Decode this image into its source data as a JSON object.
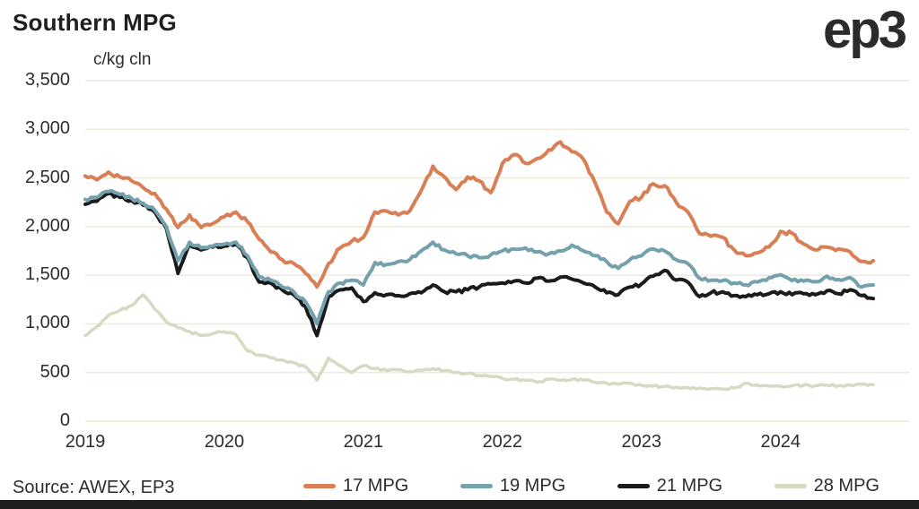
{
  "header": {
    "title": "Southern MPG",
    "unit_label": "c/kg cln",
    "logo": "ep3"
  },
  "footer": {
    "source": "Source: AWEX, EP3"
  },
  "colors": {
    "orange": "#D97F55",
    "teal": "#74A1AB",
    "black": "#1B1B1B",
    "beige": "#D8D9C2",
    "gridline": "#EEEBDD",
    "text": "#2D2D2D",
    "footer_bar": "#1F1F1F"
  },
  "chart_data": {
    "type": "line",
    "title": "Southern MPG",
    "ylabel": "c/kg cln",
    "ylim": [
      0,
      3500
    ],
    "yticks": [
      0,
      500,
      1000,
      1500,
      2000,
      2500,
      3000,
      3500
    ],
    "ytick_labels": [
      "0",
      "500",
      "1,000",
      "1,500",
      "2,000",
      "2,500",
      "3,000",
      "3,500"
    ],
    "x_start": "2019-01",
    "x_end": "2024-09",
    "x_frequency": "monthly",
    "xtick_labels": [
      "2019",
      "2020",
      "2021",
      "2022",
      "2023",
      "2024"
    ],
    "xtick_month_index": [
      0,
      12,
      24,
      36,
      48,
      60
    ],
    "grid": "horizontal-only",
    "legend_position": "bottom",
    "series": [
      {
        "name": "17 MPG",
        "color": "#D97F55",
        "values": [
          2520,
          2480,
          2560,
          2510,
          2470,
          2400,
          2340,
          2180,
          1990,
          2120,
          1990,
          2030,
          2100,
          2150,
          2050,
          1870,
          1740,
          1660,
          1620,
          1520,
          1380,
          1620,
          1780,
          1850,
          1890,
          2150,
          2160,
          2120,
          2160,
          2370,
          2620,
          2510,
          2380,
          2510,
          2470,
          2350,
          2650,
          2740,
          2650,
          2700,
          2790,
          2870,
          2770,
          2690,
          2450,
          2150,
          2030,
          2260,
          2300,
          2440,
          2420,
          2250,
          2150,
          1930,
          1900,
          1890,
          1760,
          1700,
          1730,
          1790,
          1950,
          1930,
          1820,
          1760,
          1790,
          1770,
          1740,
          1640,
          1650
        ]
      },
      {
        "name": "19 MPG",
        "color": "#74A1AB",
        "values": [
          2280,
          2300,
          2360,
          2330,
          2290,
          2240,
          2170,
          2000,
          1650,
          1840,
          1780,
          1800,
          1820,
          1840,
          1700,
          1480,
          1450,
          1380,
          1330,
          1230,
          1000,
          1330,
          1420,
          1450,
          1400,
          1630,
          1610,
          1640,
          1660,
          1750,
          1840,
          1760,
          1720,
          1700,
          1680,
          1710,
          1750,
          1770,
          1780,
          1740,
          1720,
          1750,
          1810,
          1750,
          1700,
          1640,
          1570,
          1660,
          1700,
          1770,
          1750,
          1660,
          1620,
          1470,
          1450,
          1445,
          1420,
          1400,
          1430,
          1475,
          1505,
          1445,
          1440,
          1435,
          1490,
          1455,
          1475,
          1380,
          1400
        ]
      },
      {
        "name": "21 MPG",
        "color": "#1B1B1B",
        "values": [
          2230,
          2260,
          2340,
          2300,
          2270,
          2220,
          2150,
          1980,
          1520,
          1820,
          1760,
          1790,
          1800,
          1820,
          1680,
          1430,
          1420,
          1350,
          1300,
          1180,
          880,
          1280,
          1350,
          1370,
          1230,
          1320,
          1300,
          1290,
          1310,
          1320,
          1400,
          1330,
          1330,
          1350,
          1380,
          1410,
          1420,
          1440,
          1420,
          1470,
          1440,
          1480,
          1460,
          1420,
          1380,
          1320,
          1300,
          1380,
          1410,
          1490,
          1550,
          1450,
          1430,
          1280,
          1320,
          1330,
          1290,
          1280,
          1300,
          1310,
          1330,
          1300,
          1310,
          1300,
          1340,
          1310,
          1350,
          1290,
          1260
        ]
      },
      {
        "name": "28 MPG",
        "color": "#D8D9C2",
        "values": [
          880,
          970,
          1090,
          1140,
          1190,
          1300,
          1150,
          1020,
          960,
          920,
          880,
          900,
          920,
          890,
          720,
          680,
          650,
          630,
          600,
          560,
          420,
          650,
          570,
          500,
          570,
          540,
          520,
          530,
          510,
          520,
          540,
          520,
          500,
          490,
          470,
          460,
          440,
          430,
          420,
          400,
          430,
          420,
          430,
          420,
          400,
          390,
          380,
          390,
          370,
          360,
          355,
          350,
          345,
          340,
          335,
          330,
          340,
          390,
          370,
          360,
          360,
          365,
          370,
          365,
          370,
          365,
          370,
          380,
          375
        ]
      }
    ]
  }
}
